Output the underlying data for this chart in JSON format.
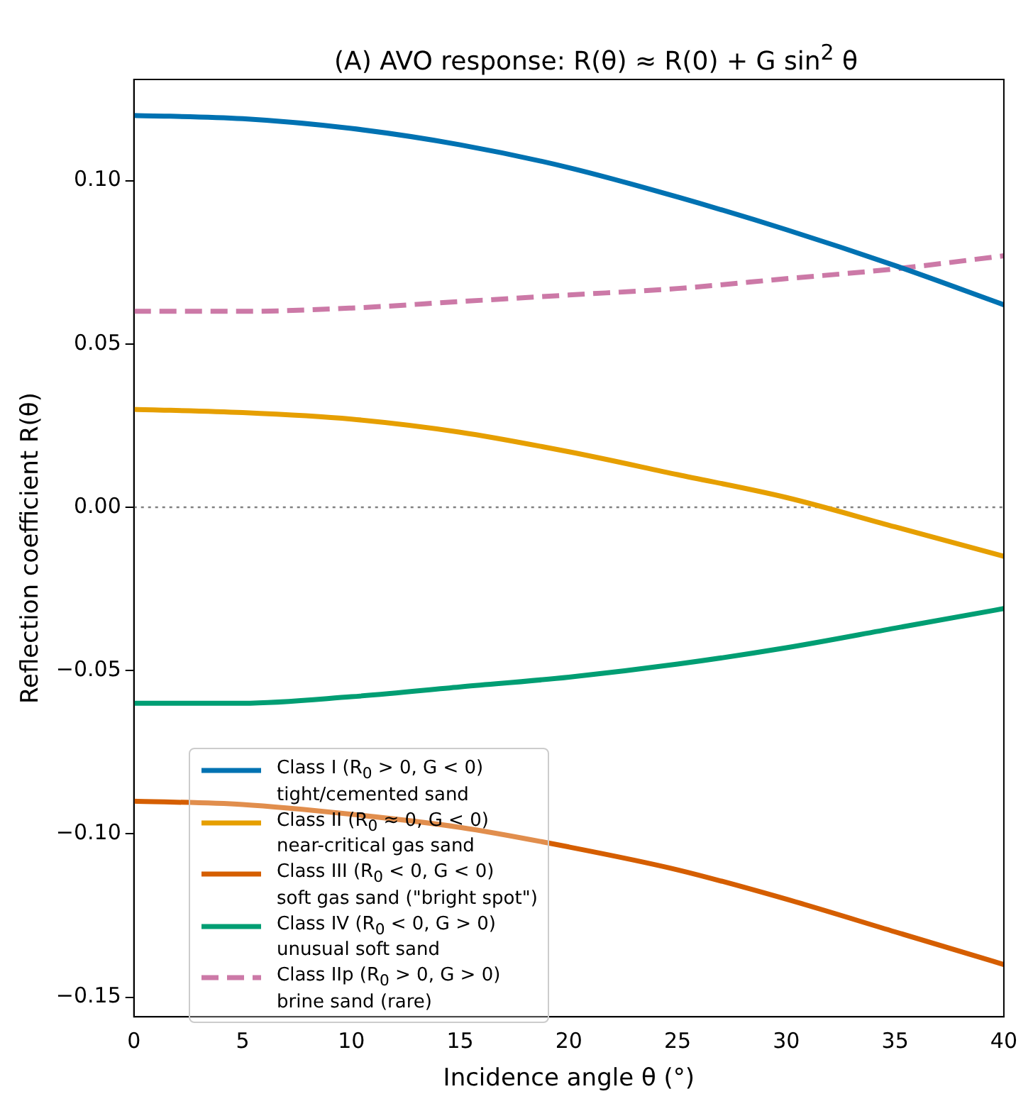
{
  "chart_data": {
    "type": "line",
    "title": "(A) AVO response: R(θ) ≈ R(0) + G sin$^{2}$ θ",
    "xlabel": "Incidence angle θ (°)",
    "ylabel": "Reflection coefficient R(θ)",
    "x": [
      0,
      5,
      10,
      15,
      20,
      25,
      30,
      35,
      40
    ],
    "series": [
      {
        "name": "Class I (R$_{0}$ > 0, G < 0)\ntight/cemented sand",
        "color": "#0072b2",
        "values": [
          0.12,
          0.119,
          0.116,
          0.111,
          0.104,
          0.095,
          0.085,
          0.074,
          0.062
        ]
      },
      {
        "name": "Class II (R$_{0}$ ≈ 0, G < 0)\nnear-critical gas sand",
        "color": "#e69f00",
        "values": [
          0.03,
          0.029,
          0.027,
          0.023,
          0.017,
          0.01,
          0.003,
          -0.006,
          -0.015
        ]
      },
      {
        "name": "Class III (R$_{0}$ < 0, G < 0)\nsoft gas sand (\"bright spot\")",
        "color": "#d55e00",
        "values": [
          -0.09,
          -0.091,
          -0.094,
          -0.098,
          -0.104,
          -0.111,
          -0.12,
          -0.13,
          -0.14
        ]
      },
      {
        "name": "Class IV (R$_{0}$ < 0, G > 0)\nunusual soft sand",
        "color": "#009e73",
        "values": [
          -0.06,
          -0.06,
          -0.058,
          -0.055,
          -0.052,
          -0.048,
          -0.043,
          -0.037,
          -0.031
        ]
      },
      {
        "name": "Class IIp (R$_{0}$ > 0, G > 0)\nbrine sand (rare)",
        "color": "#cc79a7",
        "line_style": "dashed",
        "values": [
          0.06,
          0.06,
          0.061,
          0.063,
          0.065,
          0.067,
          0.07,
          0.073,
          0.077
        ]
      }
    ],
    "xlim": [
      0,
      40
    ],
    "xticks": [
      0,
      5,
      10,
      15,
      20,
      25,
      30,
      35,
      40
    ],
    "ylim": [
      -0.156,
      0.131
    ],
    "yticks": [
      {
        "value": -0.15,
        "label": "−0.15"
      },
      {
        "value": -0.1,
        "label": "−0.10"
      },
      {
        "value": -0.05,
        "label": "−0.05"
      },
      {
        "value": 0,
        "label": "0.00"
      },
      {
        "value": 0.05,
        "label": "0.05"
      },
      {
        "value": 0.1,
        "label": "0.10"
      }
    ],
    "ref_lines": [
      {
        "axis": "y",
        "value": 0,
        "color": "#808080",
        "line_style": "dotted"
      }
    ],
    "legend": "bottom left",
    "grid": false,
    "marker": "none"
  }
}
